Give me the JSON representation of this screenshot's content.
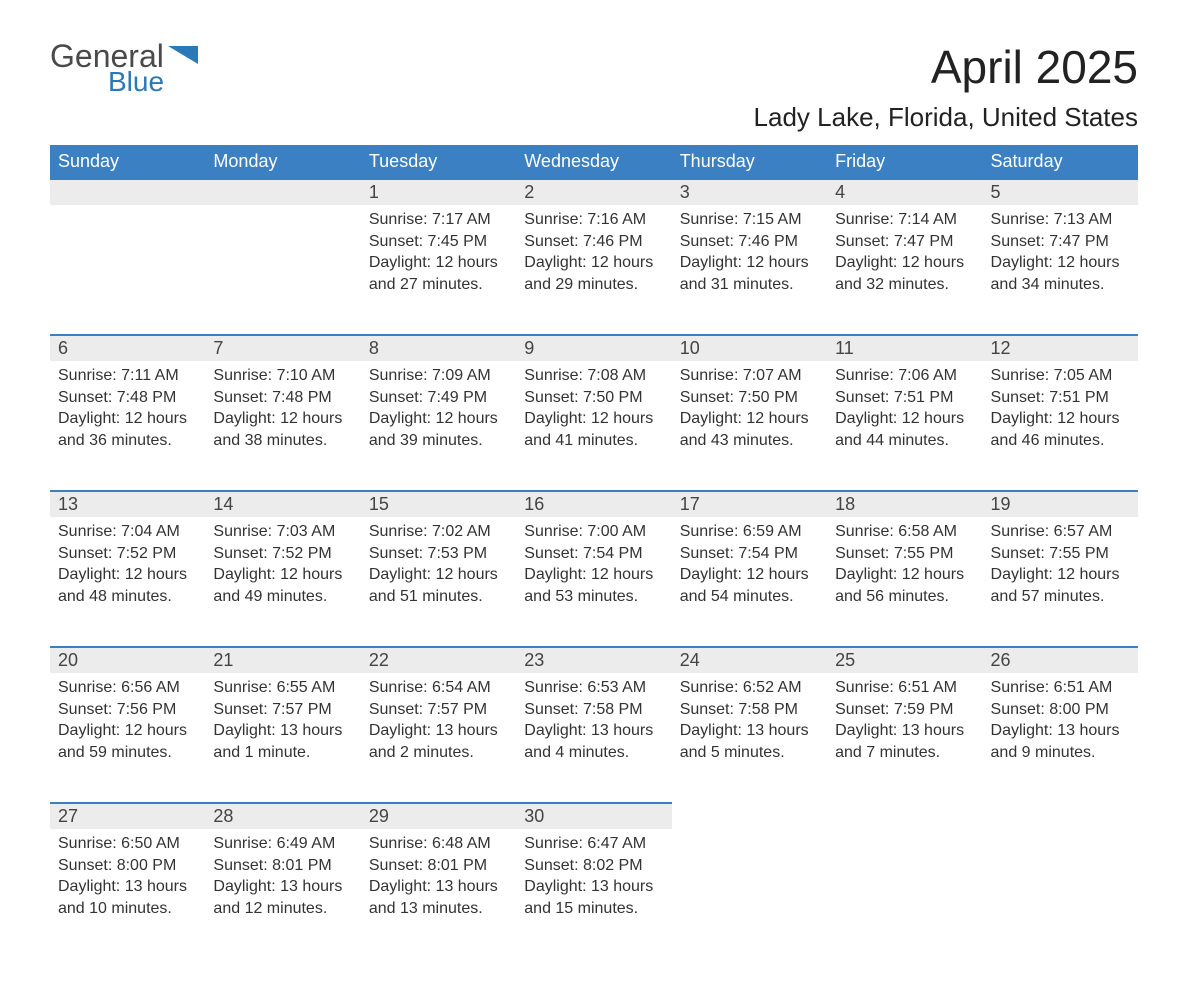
{
  "brand": {
    "line1": "General",
    "line2": "Blue",
    "flag_color": "#2a7ab9"
  },
  "title": "April 2025",
  "location": "Lady Lake, Florida, United States",
  "colors": {
    "header_bg": "#3a80c2",
    "header_text": "#ffffff",
    "daynum_bg": "#ececec",
    "daynum_border": "#3a80c2",
    "body_text": "#333333",
    "page_bg": "#ffffff"
  },
  "typography": {
    "title_fontsize": 46,
    "location_fontsize": 26,
    "header_fontsize": 18,
    "daynum_fontsize": 18,
    "cell_fontsize": 16
  },
  "weekdays": [
    "Sunday",
    "Monday",
    "Tuesday",
    "Wednesday",
    "Thursday",
    "Friday",
    "Saturday"
  ],
  "weeks": [
    [
      null,
      null,
      {
        "n": "1",
        "sunrise": "7:17 AM",
        "sunset": "7:45 PM",
        "daylight": "12 hours and 27 minutes."
      },
      {
        "n": "2",
        "sunrise": "7:16 AM",
        "sunset": "7:46 PM",
        "daylight": "12 hours and 29 minutes."
      },
      {
        "n": "3",
        "sunrise": "7:15 AM",
        "sunset": "7:46 PM",
        "daylight": "12 hours and 31 minutes."
      },
      {
        "n": "4",
        "sunrise": "7:14 AM",
        "sunset": "7:47 PM",
        "daylight": "12 hours and 32 minutes."
      },
      {
        "n": "5",
        "sunrise": "7:13 AM",
        "sunset": "7:47 PM",
        "daylight": "12 hours and 34 minutes."
      }
    ],
    [
      {
        "n": "6",
        "sunrise": "7:11 AM",
        "sunset": "7:48 PM",
        "daylight": "12 hours and 36 minutes."
      },
      {
        "n": "7",
        "sunrise": "7:10 AM",
        "sunset": "7:48 PM",
        "daylight": "12 hours and 38 minutes."
      },
      {
        "n": "8",
        "sunrise": "7:09 AM",
        "sunset": "7:49 PM",
        "daylight": "12 hours and 39 minutes."
      },
      {
        "n": "9",
        "sunrise": "7:08 AM",
        "sunset": "7:50 PM",
        "daylight": "12 hours and 41 minutes."
      },
      {
        "n": "10",
        "sunrise": "7:07 AM",
        "sunset": "7:50 PM",
        "daylight": "12 hours and 43 minutes."
      },
      {
        "n": "11",
        "sunrise": "7:06 AM",
        "sunset": "7:51 PM",
        "daylight": "12 hours and 44 minutes."
      },
      {
        "n": "12",
        "sunrise": "7:05 AM",
        "sunset": "7:51 PM",
        "daylight": "12 hours and 46 minutes."
      }
    ],
    [
      {
        "n": "13",
        "sunrise": "7:04 AM",
        "sunset": "7:52 PM",
        "daylight": "12 hours and 48 minutes."
      },
      {
        "n": "14",
        "sunrise": "7:03 AM",
        "sunset": "7:52 PM",
        "daylight": "12 hours and 49 minutes."
      },
      {
        "n": "15",
        "sunrise": "7:02 AM",
        "sunset": "7:53 PM",
        "daylight": "12 hours and 51 minutes."
      },
      {
        "n": "16",
        "sunrise": "7:00 AM",
        "sunset": "7:54 PM",
        "daylight": "12 hours and 53 minutes."
      },
      {
        "n": "17",
        "sunrise": "6:59 AM",
        "sunset": "7:54 PM",
        "daylight": "12 hours and 54 minutes."
      },
      {
        "n": "18",
        "sunrise": "6:58 AM",
        "sunset": "7:55 PM",
        "daylight": "12 hours and 56 minutes."
      },
      {
        "n": "19",
        "sunrise": "6:57 AM",
        "sunset": "7:55 PM",
        "daylight": "12 hours and 57 minutes."
      }
    ],
    [
      {
        "n": "20",
        "sunrise": "6:56 AM",
        "sunset": "7:56 PM",
        "daylight": "12 hours and 59 minutes."
      },
      {
        "n": "21",
        "sunrise": "6:55 AM",
        "sunset": "7:57 PM",
        "daylight": "13 hours and 1 minute."
      },
      {
        "n": "22",
        "sunrise": "6:54 AM",
        "sunset": "7:57 PM",
        "daylight": "13 hours and 2 minutes."
      },
      {
        "n": "23",
        "sunrise": "6:53 AM",
        "sunset": "7:58 PM",
        "daylight": "13 hours and 4 minutes."
      },
      {
        "n": "24",
        "sunrise": "6:52 AM",
        "sunset": "7:58 PM",
        "daylight": "13 hours and 5 minutes."
      },
      {
        "n": "25",
        "sunrise": "6:51 AM",
        "sunset": "7:59 PM",
        "daylight": "13 hours and 7 minutes."
      },
      {
        "n": "26",
        "sunrise": "6:51 AM",
        "sunset": "8:00 PM",
        "daylight": "13 hours and 9 minutes."
      }
    ],
    [
      {
        "n": "27",
        "sunrise": "6:50 AM",
        "sunset": "8:00 PM",
        "daylight": "13 hours and 10 minutes."
      },
      {
        "n": "28",
        "sunrise": "6:49 AM",
        "sunset": "8:01 PM",
        "daylight": "13 hours and 12 minutes."
      },
      {
        "n": "29",
        "sunrise": "6:48 AM",
        "sunset": "8:01 PM",
        "daylight": "13 hours and 13 minutes."
      },
      {
        "n": "30",
        "sunrise": "6:47 AM",
        "sunset": "8:02 PM",
        "daylight": "13 hours and 15 minutes."
      },
      null,
      null,
      null
    ]
  ],
  "labels": {
    "sunrise": "Sunrise: ",
    "sunset": "Sunset: ",
    "daylight": "Daylight: "
  }
}
